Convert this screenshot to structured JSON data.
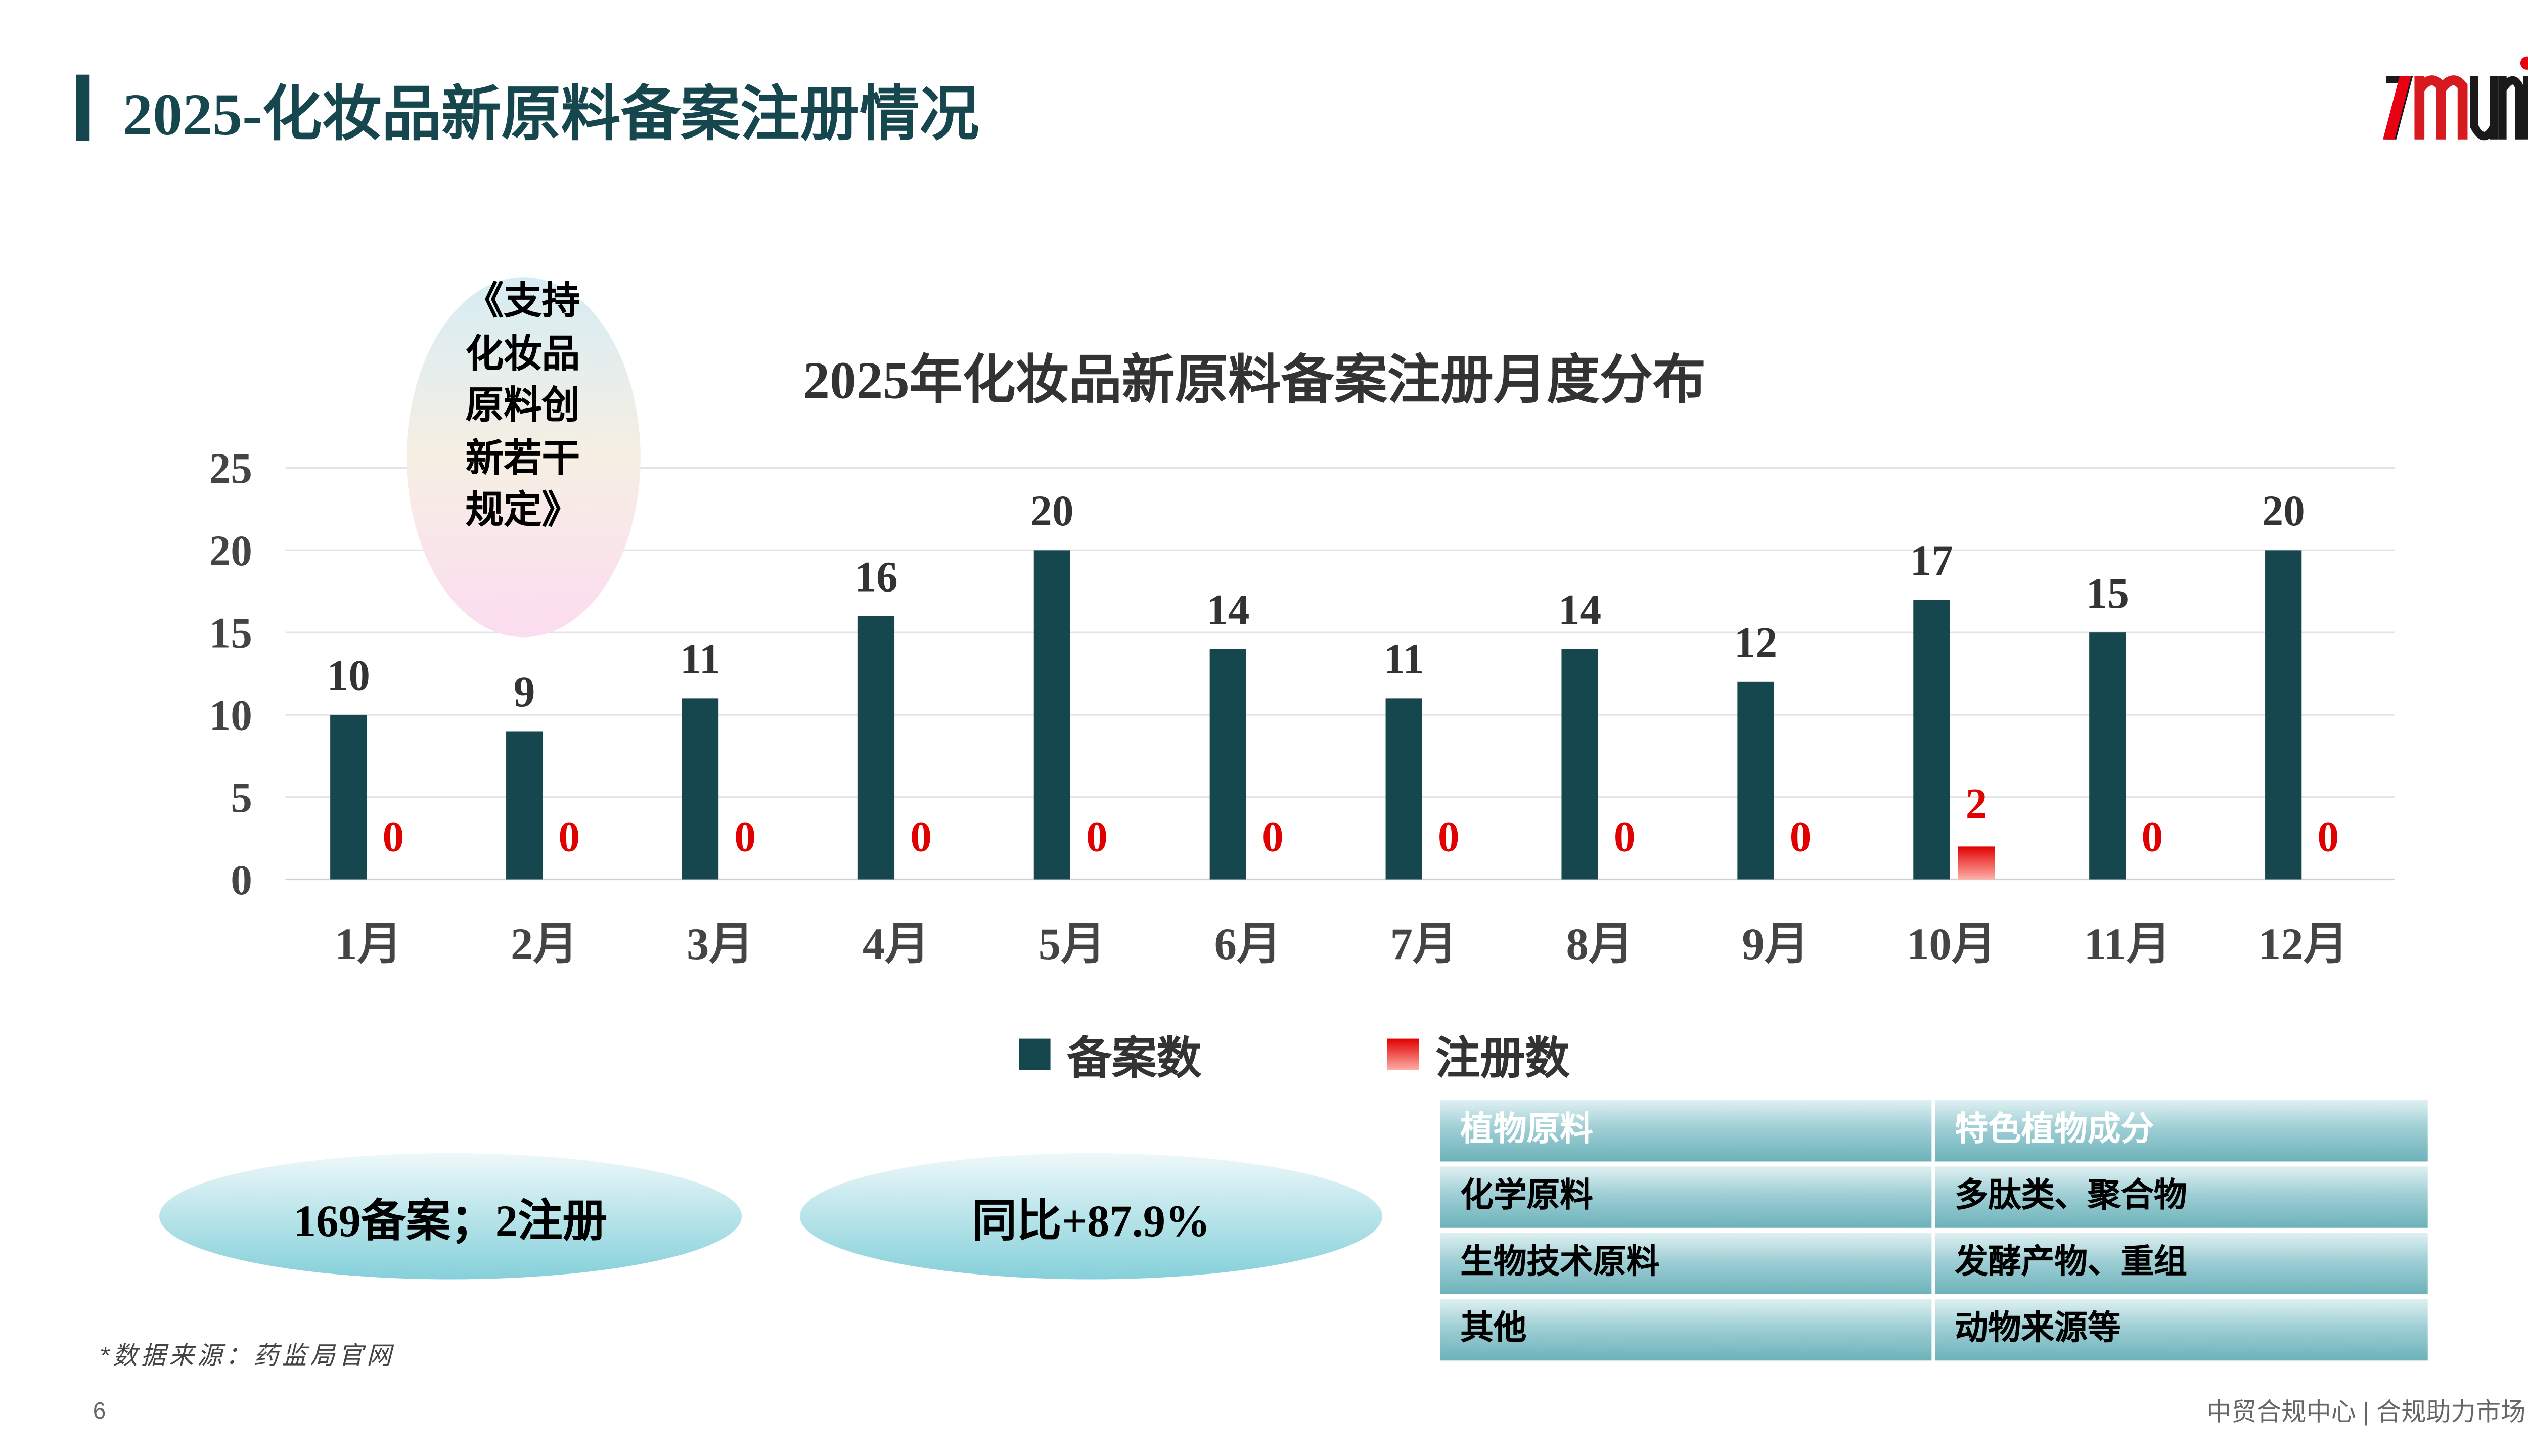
{
  "header": {
    "title": "2025-化妆品新原料备案注册情况",
    "logo_text": "zmuni®"
  },
  "annotation": {
    "text": "《支持化妆品原料创新若干规定》"
  },
  "chart_data": {
    "type": "bar",
    "title": "2025年化妆品新原料备案注册月度分布",
    "categories": [
      "1月",
      "2月",
      "3月",
      "4月",
      "5月",
      "6月",
      "7月",
      "8月",
      "9月",
      "10月",
      "11月",
      "12月"
    ],
    "series": [
      {
        "name": "备案数",
        "color": "#16474f",
        "values": [
          10,
          9,
          11,
          16,
          20,
          14,
          11,
          14,
          12,
          17,
          15,
          20
        ]
      },
      {
        "name": "注册数",
        "color": "#e81c1c",
        "values": [
          0,
          0,
          0,
          0,
          0,
          0,
          0,
          0,
          0,
          2,
          0,
          0
        ]
      }
    ],
    "yticks": [
      "0",
      "5",
      "10",
      "15",
      "20",
      "25"
    ],
    "ylim": [
      0,
      25
    ],
    "grid": true,
    "legend_position": "bottom"
  },
  "summary": {
    "totals": "169备案；2注册",
    "yoy": "同比+87.9%"
  },
  "table": {
    "header": [
      "植物原料",
      "特色植物成分"
    ],
    "rows": [
      [
        "化学原料",
        "多肽类、聚合物"
      ],
      [
        "生物技术原料",
        "发酵产物、重组"
      ],
      [
        "其他",
        "动物来源等"
      ]
    ]
  },
  "footer": {
    "source": "*数据来源：药监局官网",
    "page": "6",
    "tagline": "中贸合规中心 | 合规助力市场"
  }
}
